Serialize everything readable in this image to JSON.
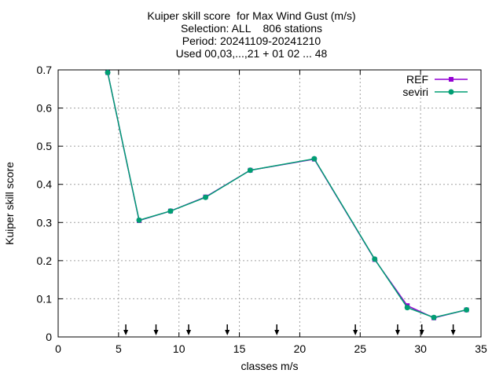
{
  "chart_data": {
    "type": "line",
    "title": [
      "Kuiper skill score  for Max Wind Gust (m/s)",
      "Selection: ALL    806 stations",
      "Period: 20241109-20241210",
      "Used 00,03,...,21 + 01 02 ... 48"
    ],
    "xlabel": "classes m/s",
    "ylabel": "Kuiper skill score",
    "xlim": [
      0,
      35
    ],
    "ylim": [
      0,
      0.7
    ],
    "xticks": [
      0,
      5,
      10,
      15,
      20,
      25,
      30,
      35
    ],
    "yticks": [
      0,
      0.1,
      0.2,
      0.3,
      0.4,
      0.5,
      0.6,
      0.7
    ],
    "ytick_labels": [
      "0",
      "0.1",
      "0.2",
      "0.3",
      "0.4",
      "0.5",
      "0.6",
      "0.7"
    ],
    "grid": true,
    "legend_position": "top-right",
    "series": [
      {
        "name": "REF",
        "color": "#9400d3",
        "marker": "square",
        "x": [
          4.1,
          6.7,
          9.3,
          12.2,
          15.9,
          21.2,
          26.2,
          28.9,
          31.1,
          33.8
        ],
        "y": [
          0.693,
          0.305,
          0.33,
          0.367,
          0.437,
          0.466,
          0.203,
          0.082,
          0.05,
          0.071
        ]
      },
      {
        "name": "seviri",
        "color": "#009e73",
        "marker": "circle",
        "x": [
          4.1,
          6.7,
          9.3,
          12.2,
          15.9,
          21.2,
          26.2,
          28.9,
          31.1,
          33.8
        ],
        "y": [
          0.693,
          0.306,
          0.33,
          0.366,
          0.437,
          0.467,
          0.204,
          0.077,
          0.051,
          0.071
        ]
      }
    ],
    "arrow_markers_x": [
      5.6,
      8.1,
      10.8,
      14.0,
      18.1,
      24.6,
      28.1,
      30.1,
      32.7
    ]
  }
}
